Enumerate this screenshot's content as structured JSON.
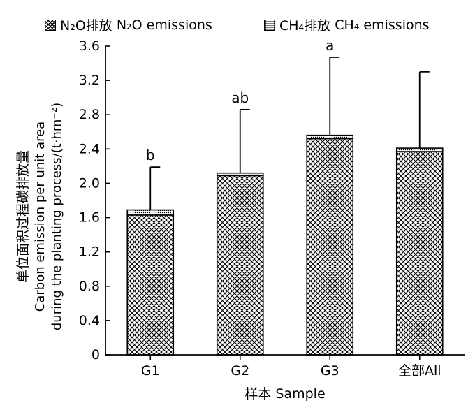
{
  "chart_data": {
    "type": "bar",
    "stacked": true,
    "categories": [
      "G1",
      "G2",
      "G3",
      "全部All"
    ],
    "series": [
      {
        "name": "N2O排放 N2O emissions",
        "pattern": "crosshatch",
        "values": [
          1.63,
          2.09,
          2.52,
          2.37
        ]
      },
      {
        "name": "CH4排放 CH4 emissions",
        "pattern": "dots",
        "values": [
          0.06,
          0.03,
          0.04,
          0.04
        ]
      }
    ],
    "totals": [
      1.69,
      2.12,
      2.56,
      2.41
    ],
    "error_upper": [
      2.19,
      2.86,
      3.47,
      3.3
    ],
    "significance_labels": [
      "b",
      "ab",
      "a",
      ""
    ],
    "xlabel": "样本 Sample",
    "ylabel_cn": "单位面积过程碳排放量",
    "ylabel_en1": "Carbon emission per unit area",
    "ylabel_en2": "during the planting process/(t·hm⁻²)",
    "ylim": [
      0,
      3.6
    ],
    "yticks": [
      0,
      0.4,
      0.8,
      1.2,
      1.6,
      2.0,
      2.4,
      2.8,
      3.2,
      3.6
    ],
    "ytick_labels": [
      "0",
      "0.4",
      "0.8",
      "1.2",
      "1.6",
      "2.0",
      "2.4",
      "2.8",
      "3.2",
      "3.6"
    ],
    "legend": {
      "placement": "top",
      "n2o_cn": "N₂O排放",
      "n2o_en": "N₂O emissions",
      "ch4_cn": "CH₄排放",
      "ch4_en": "CH₄ emissions"
    },
    "grid": false
  }
}
